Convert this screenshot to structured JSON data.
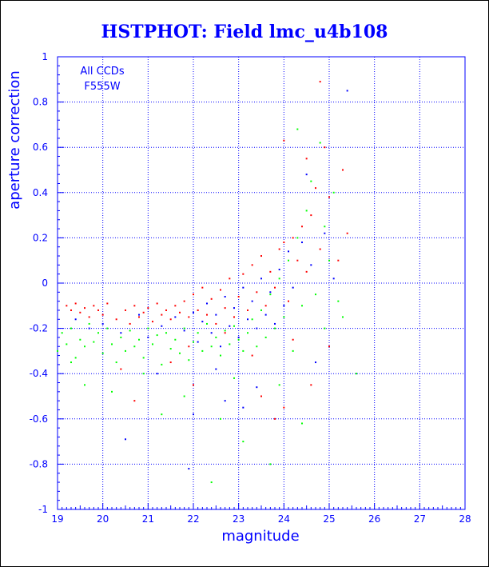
{
  "chart_data": {
    "type": "scatter",
    "title": "HSTPHOT: Field lmc_u4b108",
    "xlabel": "magnitude",
    "ylabel": "aperture correction",
    "xlim": [
      19,
      28
    ],
    "ylim": [
      -1,
      1
    ],
    "xticks": [
      "19",
      "20",
      "21",
      "22",
      "23",
      "24",
      "25",
      "26",
      "27",
      "28"
    ],
    "yticks": [
      "-1",
      "-0.8",
      "-0.6",
      "-0.4",
      "-0.2",
      "0",
      "0.2",
      "0.4",
      "0.6",
      "0.8",
      "1"
    ],
    "grid": true,
    "annotation": [
      "All CCDs",
      "F555W"
    ],
    "colors": {
      "axis": "#0000ff",
      "grid": "#0000ff",
      "background": "#ffffff"
    },
    "series": [
      {
        "color": "#ff0000",
        "points": [
          [
            19.2,
            -0.1
          ],
          [
            19.3,
            -0.12
          ],
          [
            19.4,
            -0.09
          ],
          [
            19.5,
            -0.13
          ],
          [
            19.6,
            -0.11
          ],
          [
            19.7,
            -0.15
          ],
          [
            19.8,
            -0.1
          ],
          [
            19.9,
            -0.12
          ],
          [
            20.0,
            -0.14
          ],
          [
            20.1,
            -0.09
          ],
          [
            20.3,
            -0.16
          ],
          [
            20.5,
            -0.12
          ],
          [
            20.6,
            -0.18
          ],
          [
            20.7,
            -0.1
          ],
          [
            20.8,
            -0.15
          ],
          [
            20.9,
            -0.13
          ],
          [
            21.0,
            -0.11
          ],
          [
            21.1,
            -0.17
          ],
          [
            21.2,
            -0.09
          ],
          [
            21.3,
            -0.14
          ],
          [
            21.4,
            -0.12
          ],
          [
            21.5,
            -0.16
          ],
          [
            21.6,
            -0.1
          ],
          [
            21.7,
            -0.13
          ],
          [
            21.8,
            -0.08
          ],
          [
            21.9,
            -0.15
          ],
          [
            22.0,
            -0.05
          ],
          [
            22.1,
            -0.12
          ],
          [
            22.2,
            -0.02
          ],
          [
            22.3,
            -0.14
          ],
          [
            22.4,
            -0.07
          ],
          [
            22.5,
            -0.18
          ],
          [
            22.6,
            -0.03
          ],
          [
            22.7,
            -0.11
          ],
          [
            22.8,
            0.02
          ],
          [
            22.9,
            -0.15
          ],
          [
            23.0,
            -0.06
          ],
          [
            23.1,
            0.04
          ],
          [
            23.2,
            -0.12
          ],
          [
            23.3,
            0.08
          ],
          [
            23.4,
            -0.04
          ],
          [
            23.5,
            0.12
          ],
          [
            23.6,
            -0.1
          ],
          [
            23.7,
            0.05
          ],
          [
            23.8,
            -0.02
          ],
          [
            23.9,
            0.15
          ],
          [
            24.0,
            0.18
          ],
          [
            24.1,
            -0.08
          ],
          [
            24.2,
            0.2
          ],
          [
            24.3,
            0.1
          ],
          [
            24.4,
            0.25
          ],
          [
            24.5,
            0.05
          ],
          [
            24.6,
            0.3
          ],
          [
            24.7,
            0.42
          ],
          [
            24.8,
            0.15
          ],
          [
            24.9,
            0.6
          ],
          [
            25.0,
            0.38
          ],
          [
            25.2,
            0.1
          ],
          [
            25.3,
            0.5
          ],
          [
            24.5,
            0.55
          ],
          [
            24.0,
            0.63
          ],
          [
            24.8,
            0.89
          ],
          [
            25.4,
            0.22
          ],
          [
            23.8,
            -0.6
          ],
          [
            24.0,
            -0.55
          ],
          [
            22.0,
            -0.45
          ],
          [
            21.5,
            -0.35
          ],
          [
            23.5,
            -0.5
          ],
          [
            20.4,
            -0.38
          ],
          [
            20.7,
            -0.52
          ],
          [
            24.2,
            -0.25
          ],
          [
            23.3,
            -0.32
          ],
          [
            22.7,
            -0.22
          ],
          [
            21.9,
            -0.28
          ],
          [
            24.6,
            -0.45
          ],
          [
            25.0,
            -0.28
          ]
        ]
      },
      {
        "color": "#00ff00",
        "points": [
          [
            19.0,
            -0.3
          ],
          [
            19.1,
            -0.22
          ],
          [
            19.2,
            -0.27
          ],
          [
            19.3,
            -0.2
          ],
          [
            19.4,
            -0.33
          ],
          [
            19.5,
            -0.25
          ],
          [
            19.6,
            -0.28
          ],
          [
            19.7,
            -0.18
          ],
          [
            19.8,
            -0.26
          ],
          [
            19.9,
            -0.22
          ],
          [
            20.0,
            -0.31
          ],
          [
            20.1,
            -0.2
          ],
          [
            20.2,
            -0.27
          ],
          [
            20.3,
            -0.35
          ],
          [
            20.4,
            -0.24
          ],
          [
            20.5,
            -0.3
          ],
          [
            20.6,
            -0.21
          ],
          [
            20.7,
            -0.28
          ],
          [
            20.8,
            -0.25
          ],
          [
            20.9,
            -0.33
          ],
          [
            21.0,
            -0.2
          ],
          [
            21.1,
            -0.27
          ],
          [
            21.2,
            -0.23
          ],
          [
            21.3,
            -0.36
          ],
          [
            21.4,
            -0.22
          ],
          [
            21.5,
            -0.29
          ],
          [
            21.6,
            -0.25
          ],
          [
            21.7,
            -0.31
          ],
          [
            21.8,
            -0.2
          ],
          [
            21.9,
            -0.34
          ],
          [
            22.0,
            -0.26
          ],
          [
            22.1,
            -0.22
          ],
          [
            22.2,
            -0.3
          ],
          [
            22.3,
            -0.18
          ],
          [
            22.4,
            -0.28
          ],
          [
            22.5,
            -0.24
          ],
          [
            22.6,
            -0.32
          ],
          [
            22.7,
            -0.21
          ],
          [
            22.8,
            -0.27
          ],
          [
            22.9,
            -0.19
          ],
          [
            23.0,
            -0.25
          ],
          [
            23.1,
            -0.3
          ],
          [
            23.2,
            -0.22
          ],
          [
            23.3,
            -0.16
          ],
          [
            23.4,
            -0.28
          ],
          [
            23.5,
            -0.12
          ],
          [
            23.6,
            -0.24
          ],
          [
            23.7,
            -0.05
          ],
          [
            23.8,
            -0.2
          ],
          [
            23.9,
            0.02
          ],
          [
            24.0,
            -0.15
          ],
          [
            24.1,
            0.1
          ],
          [
            24.2,
            -0.3
          ],
          [
            24.3,
            0.2
          ],
          [
            24.4,
            -0.1
          ],
          [
            24.5,
            0.32
          ],
          [
            24.6,
            0.45
          ],
          [
            24.7,
            -0.05
          ],
          [
            24.8,
            0.62
          ],
          [
            24.9,
            0.25
          ],
          [
            25.0,
            0.1
          ],
          [
            25.1,
            0.4
          ],
          [
            25.2,
            -0.08
          ],
          [
            24.3,
            0.68
          ],
          [
            25.6,
            -0.4
          ],
          [
            19.6,
            -0.45
          ],
          [
            20.2,
            -0.48
          ],
          [
            21.8,
            -0.5
          ],
          [
            22.6,
            -0.6
          ],
          [
            23.1,
            -0.7
          ],
          [
            23.7,
            -0.8
          ],
          [
            22.4,
            -0.88
          ],
          [
            21.3,
            -0.58
          ],
          [
            24.4,
            -0.62
          ],
          [
            23.9,
            -0.45
          ],
          [
            22.9,
            -0.42
          ],
          [
            20.9,
            -0.4
          ],
          [
            19.3,
            -0.35
          ],
          [
            24.9,
            -0.2
          ],
          [
            25.3,
            -0.15
          ]
        ]
      },
      {
        "color": "#0000ff",
        "points": [
          [
            19.4,
            -0.16
          ],
          [
            19.7,
            -0.2
          ],
          [
            20.0,
            -0.18
          ],
          [
            20.4,
            -0.22
          ],
          [
            20.8,
            -0.14
          ],
          [
            21.0,
            -0.24
          ],
          [
            21.3,
            -0.19
          ],
          [
            21.6,
            -0.15
          ],
          [
            21.8,
            -0.21
          ],
          [
            22.0,
            -0.13
          ],
          [
            22.1,
            -0.26
          ],
          [
            22.2,
            -0.17
          ],
          [
            22.3,
            -0.09
          ],
          [
            22.4,
            -0.22
          ],
          [
            22.5,
            -0.14
          ],
          [
            22.6,
            -0.28
          ],
          [
            22.7,
            -0.06
          ],
          [
            22.8,
            -0.19
          ],
          [
            22.9,
            -0.11
          ],
          [
            23.0,
            -0.24
          ],
          [
            23.1,
            -0.02
          ],
          [
            23.2,
            -0.16
          ],
          [
            23.3,
            -0.08
          ],
          [
            23.4,
            -0.2
          ],
          [
            23.5,
            0.02
          ],
          [
            23.6,
            -0.14
          ],
          [
            23.7,
            -0.04
          ],
          [
            23.8,
            -0.18
          ],
          [
            23.9,
            0.06
          ],
          [
            24.0,
            -0.1
          ],
          [
            24.1,
            0.14
          ],
          [
            24.2,
            -0.02
          ],
          [
            24.4,
            0.18
          ],
          [
            24.6,
            0.08
          ],
          [
            24.9,
            0.22
          ],
          [
            25.1,
            0.02
          ],
          [
            25.4,
            0.85
          ],
          [
            24.5,
            0.48
          ],
          [
            22.0,
            -0.58
          ],
          [
            22.7,
            -0.52
          ],
          [
            23.4,
            -0.46
          ],
          [
            20.5,
            -0.69
          ],
          [
            21.9,
            -0.82
          ],
          [
            23.1,
            -0.55
          ],
          [
            24.7,
            -0.35
          ],
          [
            21.2,
            -0.4
          ],
          [
            22.5,
            -0.38
          ]
        ]
      }
    ]
  }
}
